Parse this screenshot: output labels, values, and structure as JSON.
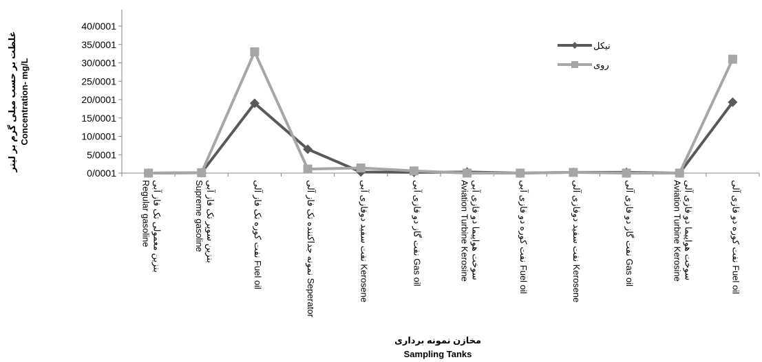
{
  "chart_data": {
    "type": "line",
    "ylabel": [
      "غلظت بر حسب میلی گرم بر لیتر",
      "Concentration- mg/L"
    ],
    "xlabel": [
      "مخازن نمونه برداری",
      "Sampling Tanks"
    ],
    "y_ticks": [
      "0/0001",
      "5/0001",
      "10/0001",
      "15/0001",
      "20/0001",
      "25/0001",
      "30/0001",
      "35/0001",
      "40/0001"
    ],
    "ylim": [
      0,
      40
    ],
    "grid": false,
    "legend_position": "top-right",
    "categories": [
      [
        "بنزین معمولی تک فاز آبی",
        "Regular gasoline"
      ],
      [
        "بنزین سوپر تک فاز آبی",
        "Supreme gasoline"
      ],
      [
        "نفت کوره تک فاز آلی Fuel oil"
      ],
      [
        "نمونه جداکننده تک فاز آلی Seperator"
      ],
      [
        "نفت سفید دوفازی آبی Kerosene"
      ],
      [
        "نفت گاز دو فازی آبی Gas oil"
      ],
      [
        "سوخت هواپیما دو فازی آبی",
        "Aviation Turbine Kerosine"
      ],
      [
        "نفت کوره دو فازی آبی Fuel oil"
      ],
      [
        "نفت سفید دوفازی آلی Kerosene"
      ],
      [
        "نفت گاز دو فازی آلی Gas oil"
      ],
      [
        "سوخت هواپیما دو فازی آلی",
        "Aviation Turbine Kerosine"
      ],
      [
        "نفت کوره دو فازی آلی Fuel oil"
      ]
    ],
    "series": [
      {
        "name": "نیکل",
        "color": "#595959",
        "marker": "diamond",
        "values": [
          0,
          0.1,
          19,
          6.5,
          0.3,
          0.2,
          0.3,
          0,
          0.2,
          0.2,
          0,
          19.3
        ]
      },
      {
        "name": "روی",
        "color": "#a6a6a6",
        "marker": "square",
        "values": [
          0,
          0.1,
          33,
          1.1,
          1.4,
          0.6,
          0,
          0,
          0.2,
          0,
          0,
          31
        ]
      }
    ]
  }
}
